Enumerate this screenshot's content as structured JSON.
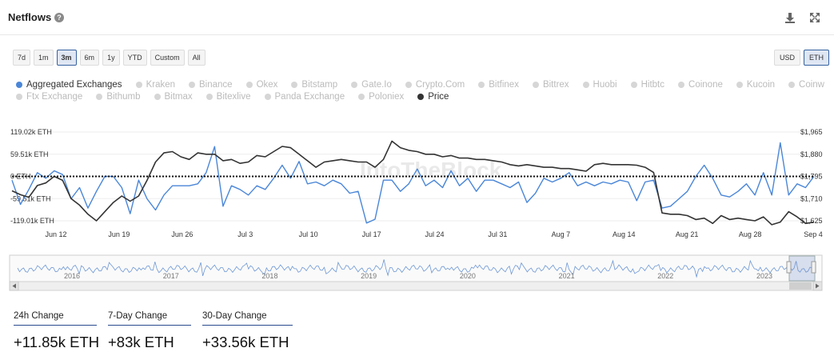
{
  "header": {
    "title": "Netflows",
    "help_icon": "question-circle-icon",
    "download_icon": "download-icon",
    "expand_icon": "expand-arrows-icon"
  },
  "ranges": [
    "7d",
    "1m",
    "3m",
    "6m",
    "1y",
    "YTD",
    "Custom",
    "All"
  ],
  "active_range": "3m",
  "units": [
    "USD",
    "ETH"
  ],
  "active_unit": "ETH",
  "legend": [
    {
      "label": "Aggregated Exchanges",
      "active": true,
      "color": "#4a86d8"
    },
    {
      "label": "Kraken",
      "active": false
    },
    {
      "label": "Binance",
      "active": false
    },
    {
      "label": "Okex",
      "active": false
    },
    {
      "label": "Bitstamp",
      "active": false
    },
    {
      "label": "Gate.Io",
      "active": false
    },
    {
      "label": "Crypto.Com",
      "active": false
    },
    {
      "label": "Bitfinex",
      "active": false
    },
    {
      "label": "Bittrex",
      "active": false
    },
    {
      "label": "Huobi",
      "active": false
    },
    {
      "label": "Hitbtc",
      "active": false
    },
    {
      "label": "Coinone",
      "active": false
    },
    {
      "label": "Kucoin",
      "active": false
    },
    {
      "label": "Coinw",
      "active": false
    },
    {
      "label": "Ftx Exchange",
      "active": false
    },
    {
      "label": "Bithumb",
      "active": false
    },
    {
      "label": "Bitmax",
      "active": false
    },
    {
      "label": "Bitexlive",
      "active": false
    },
    {
      "label": "Panda Exchange",
      "active": false
    },
    {
      "label": "Poloniex",
      "active": false
    },
    {
      "label": "Price",
      "active": true,
      "color": "#333333"
    }
  ],
  "chart_data": {
    "type": "line",
    "watermark": "IntoTheBlock",
    "x_tick_labels": [
      "Jun 12",
      "Jun 19",
      "Jun 26",
      "Jul 3",
      "Jul 10",
      "Jul 17",
      "Jul 24",
      "Jul 31",
      "Aug 7",
      "Aug 14",
      "Aug 21",
      "Aug 28",
      "Sep 4"
    ],
    "left_axis": {
      "tick_labels": [
        "119.02k ETH",
        "59.51k ETH",
        "0 ETH",
        "-59.51k ETH",
        "-119.01k ETH"
      ],
      "range": [
        -119010,
        119020
      ],
      "unit": "ETH"
    },
    "right_axis": {
      "tick_labels": [
        "$1,965",
        "$1,880",
        "$1,795",
        "$1,710",
        "$1,625"
      ],
      "range": [
        1625,
        1965
      ],
      "unit": "USD"
    },
    "zero_line": "dotted",
    "series": [
      {
        "name": "Aggregated Exchanges",
        "axis": "left",
        "color": "#4a86d8",
        "values": [
          -10000,
          -75000,
          -35000,
          10000,
          -5000,
          15000,
          5000,
          -60000,
          -30000,
          -85000,
          -40000,
          0,
          0,
          -30000,
          -100000,
          -10000,
          -60000,
          -90000,
          -50000,
          -25000,
          -25000,
          -25000,
          -20000,
          10000,
          80000,
          -80000,
          -25000,
          -35000,
          -50000,
          -25000,
          -35000,
          -5000,
          30000,
          -5000,
          40000,
          -20000,
          -15000,
          -25000,
          -10000,
          -20000,
          -45000,
          -40000,
          -125000,
          -115000,
          -10000,
          -10000,
          -40000,
          -20000,
          20000,
          -25000,
          -10000,
          -30000,
          15000,
          -25000,
          -5000,
          -40000,
          -10000,
          -10000,
          -20000,
          -30000,
          -15000,
          -70000,
          -45000,
          -5000,
          -15000,
          -5000,
          10000,
          -25000,
          -15000,
          -25000,
          -15000,
          -20000,
          -10000,
          -15000,
          -65000,
          -15000,
          -10000,
          -85000,
          -80000,
          -60000,
          -40000,
          0,
          30000,
          -5000,
          -50000,
          -55000,
          -40000,
          -20000,
          -50000,
          10000,
          -50000,
          90000,
          -50000,
          -20000,
          -30000,
          0
        ]
      },
      {
        "name": "Price",
        "axis": "right",
        "color": "#333333",
        "values": [
          1740,
          1725,
          1715,
          1760,
          1770,
          1795,
          1780,
          1710,
          1685,
          1650,
          1625,
          1660,
          1695,
          1720,
          1700,
          1720,
          1780,
          1850,
          1885,
          1890,
          1870,
          1860,
          1885,
          1880,
          1880,
          1855,
          1860,
          1845,
          1850,
          1875,
          1870,
          1890,
          1910,
          1905,
          1880,
          1855,
          1830,
          1850,
          1855,
          1860,
          1855,
          1850,
          1850,
          1830,
          1860,
          1930,
          1905,
          1895,
          1890,
          1880,
          1880,
          1870,
          1875,
          1865,
          1865,
          1860,
          1860,
          1855,
          1850,
          1840,
          1835,
          1840,
          1835,
          1830,
          1830,
          1825,
          1825,
          1820,
          1815,
          1840,
          1845,
          1840,
          1840,
          1840,
          1838,
          1830,
          1810,
          1655,
          1650,
          1650,
          1645,
          1630,
          1635,
          1615,
          1645,
          1630,
          1635,
          1630,
          1625,
          1640,
          1610,
          1620,
          1660,
          1640,
          1615,
          1620
        ]
      }
    ]
  },
  "navigator": {
    "year_labels": [
      "2016",
      "2017",
      "2018",
      "2019",
      "2020",
      "2021",
      "2022",
      "2023"
    ]
  },
  "stats": [
    {
      "label": "24h Change",
      "value": "+11.85k ETH"
    },
    {
      "label": "7-Day Change",
      "value": "+83k ETH"
    },
    {
      "label": "30-Day Change",
      "value": "+33.56k ETH"
    }
  ]
}
